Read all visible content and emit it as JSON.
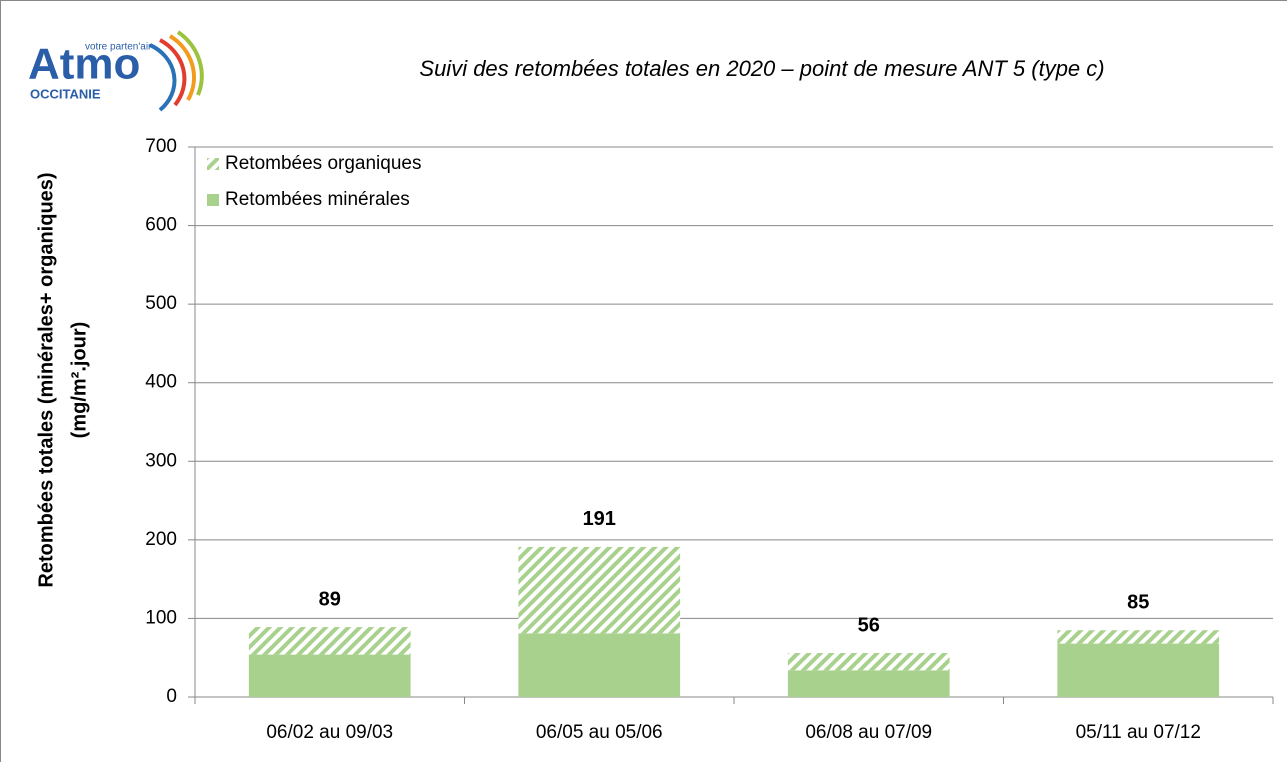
{
  "logo": {
    "name": "Atmo",
    "tagline": "votre parten'air",
    "region": "OCCITANIE"
  },
  "chart_data": {
    "type": "stacked_bar",
    "title": "Suivi des retombées totales en 2020 – point de mesure ANT 5 (type c)",
    "ylabel": [
      "Retombées totales (minérales+ organiques)",
      "(mg/m².jour)"
    ],
    "categories": [
      "06/02 au 09/03",
      "06/05 au 05/06",
      "06/08 au 07/09",
      "05/11 au 07/12"
    ],
    "series": [
      {
        "name": "Retombées minérales",
        "color": "#a9d18e",
        "values": [
          54,
          81,
          34,
          68
        ]
      },
      {
        "name": "Retombées organiques",
        "color": "#a9d18e",
        "pattern": "hatch",
        "values": [
          35,
          110,
          22,
          17
        ]
      }
    ],
    "totals": [
      89,
      191,
      56,
      85
    ],
    "ylim": [
      0,
      700
    ],
    "yticks": [
      0,
      100,
      200,
      300,
      400,
      500,
      600,
      700
    ],
    "grid": true,
    "legend": "top-left"
  }
}
